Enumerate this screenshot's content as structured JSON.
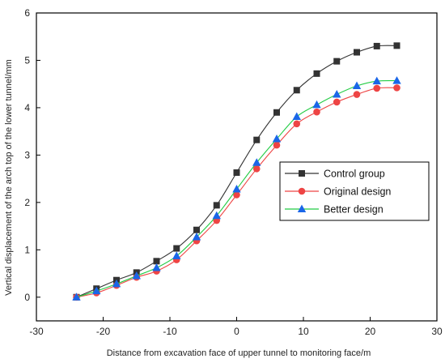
{
  "chart_data": {
    "type": "line",
    "xlabel": "Distance from excavation face of upper tunnel to monitoring face/m",
    "ylabel": "Vertical displacement of the arch top of the lower tunnel/mm",
    "xlim": [
      -30,
      30
    ],
    "ylim": [
      -0.5,
      6
    ],
    "xticks": [
      -30,
      -20,
      -10,
      0,
      10,
      20,
      30
    ],
    "yticks": [
      0,
      1,
      2,
      3,
      4,
      5,
      6
    ],
    "grid": false,
    "legend_position": "center-right",
    "series": [
      {
        "name": "Control group",
        "color": "#333333",
        "marker": "square",
        "x": [
          -24,
          -21,
          -18,
          -15,
          -12,
          -9,
          -6,
          -3,
          0,
          3,
          6,
          9,
          12,
          15,
          18,
          21,
          24
        ],
        "y": [
          0,
          0.18,
          0.36,
          0.52,
          0.76,
          1.03,
          1.42,
          1.94,
          2.63,
          3.32,
          3.9,
          4.37,
          4.72,
          4.98,
          5.17,
          5.3,
          5.31
        ]
      },
      {
        "name": "Original design",
        "color": "#ee4444",
        "marker": "circle",
        "x": [
          -24,
          -21,
          -18,
          -15,
          -12,
          -9,
          -6,
          -3,
          0,
          3,
          6,
          9,
          12,
          15,
          18,
          21,
          24
        ],
        "y": [
          0,
          0.09,
          0.25,
          0.42,
          0.55,
          0.79,
          1.19,
          1.62,
          2.16,
          2.71,
          3.21,
          3.66,
          3.91,
          4.12,
          4.28,
          4.41,
          4.42
        ]
      },
      {
        "name": "Better design",
        "color": "#1a66e8",
        "line_color": "#22cc44",
        "marker": "triangle",
        "x": [
          -24,
          -21,
          -18,
          -15,
          -12,
          -9,
          -6,
          -3,
          0,
          3,
          6,
          9,
          12,
          15,
          18,
          21,
          24
        ],
        "y": [
          0,
          0.13,
          0.28,
          0.45,
          0.62,
          0.87,
          1.27,
          1.72,
          2.28,
          2.84,
          3.34,
          3.81,
          4.06,
          4.28,
          4.46,
          4.56,
          4.57
        ]
      }
    ]
  }
}
